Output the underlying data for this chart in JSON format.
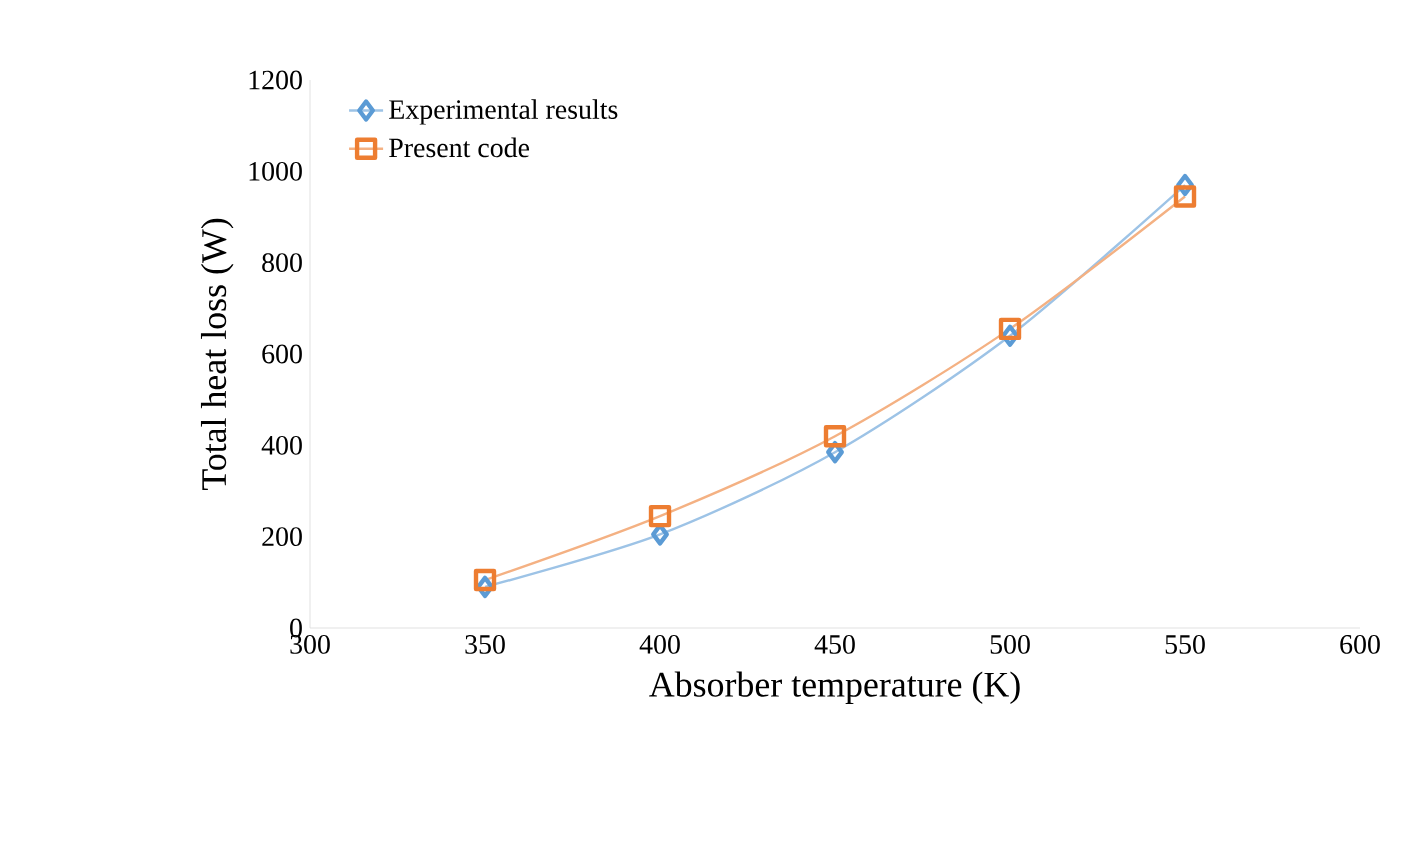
{
  "chart_data": {
    "type": "line",
    "xlabel": "Absorber temperature (K)",
    "ylabel": "Total heat loss (W)",
    "xlim": [
      300,
      600
    ],
    "xticks": [
      300,
      350,
      400,
      450,
      500,
      550,
      600
    ],
    "ylim": [
      0,
      1200
    ],
    "yticks": [
      0,
      200,
      400,
      600,
      800,
      1000,
      1200
    ],
    "x": [
      350,
      400,
      450,
      500,
      550
    ],
    "series": [
      {
        "name": "Experimental results",
        "color": "#5b9bd5",
        "marker": "diamond",
        "values": [
          90,
          205,
          385,
          640,
          970
        ]
      },
      {
        "name": "Present code",
        "color": "#ed7d31",
        "marker": "square",
        "values": [
          105,
          245,
          420,
          655,
          945
        ]
      }
    ],
    "legend": "top left",
    "grid": false
  }
}
